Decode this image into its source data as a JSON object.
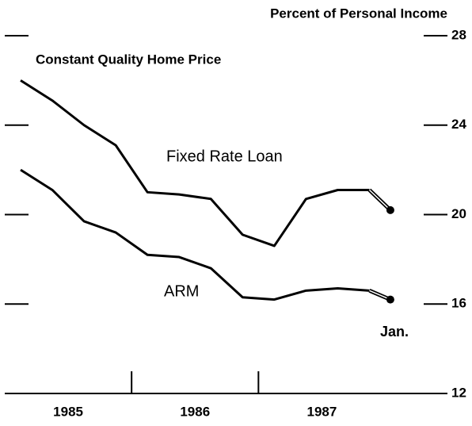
{
  "chart_data": {
    "type": "line",
    "title": "Percent of Personal Income",
    "annotations": [
      "Constant Quality Home Price",
      "Fixed Rate Loan",
      "ARM",
      "Jan."
    ],
    "x": [
      1985.125,
      1985.375,
      1985.625,
      1985.875,
      1986.125,
      1986.375,
      1986.625,
      1986.875,
      1987.125,
      1987.375,
      1987.625,
      1987.875,
      1988.04
    ],
    "series": [
      {
        "name": "Fixed Rate Loan",
        "color": "#000000",
        "values": [
          26.0,
          25.1,
          24.0,
          23.1,
          21.0,
          20.9,
          20.7,
          19.1,
          18.6,
          20.7,
          21.1,
          21.1,
          20.2
        ]
      },
      {
        "name": "ARM",
        "color": "#000000",
        "values": [
          22.0,
          21.1,
          19.7,
          19.2,
          18.2,
          18.1,
          17.6,
          16.3,
          16.2,
          16.6,
          16.7,
          16.6,
          16.2
        ]
      }
    ],
    "xlim": [
      1985,
      1988.49
    ],
    "xticks": [
      1986,
      1987
    ],
    "year_labels": [
      "1985",
      "1986",
      "1987"
    ],
    "ylim": [
      12,
      28
    ],
    "yticks": [
      12,
      16,
      20,
      24,
      28
    ]
  }
}
